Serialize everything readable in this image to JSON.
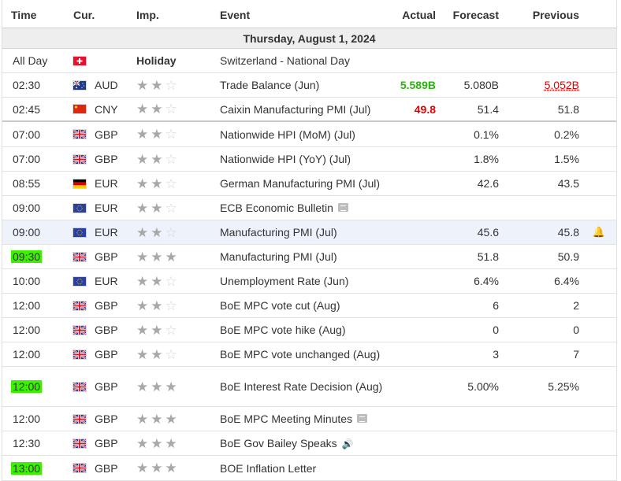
{
  "header": {
    "time": "Time",
    "currency": "Cur.",
    "importance": "Imp.",
    "event": "Event",
    "actual": "Actual",
    "forecast": "Forecast",
    "previous": "Previous"
  },
  "day_label": "Thursday, August 1, 2024",
  "colors": {
    "highlight": "#3cf000",
    "actual_positive": "#2cb012",
    "actual_negative": "#e00000",
    "selected_row": "#eef3fb"
  },
  "rows": [
    {
      "time": "All Day",
      "flag": "CH",
      "currency": "",
      "imp_label": "Holiday",
      "stars": null,
      "event": "Switzerland - National Day",
      "actual": "",
      "forecast": "",
      "previous": ""
    },
    {
      "time": "02:30",
      "flag": "AU",
      "currency": "AUD",
      "stars": 2,
      "event": "Trade Balance (Jun)",
      "actual": "5.589B",
      "actual_color": "positive",
      "forecast": "5.080B",
      "previous": "5.052B",
      "previous_revised": true
    },
    {
      "time": "02:45",
      "flag": "CN",
      "currency": "CNY",
      "stars": 2,
      "event": "Caixin Manufacturing PMI (Jul)",
      "actual": "49.8",
      "actual_color": "negative",
      "forecast": "51.4",
      "previous": "51.8"
    },
    {
      "time": "07:00",
      "flag": "GB",
      "currency": "GBP",
      "stars": 2,
      "event": "Nationwide HPI (MoM) (Jul)",
      "actual": "",
      "forecast": "0.1%",
      "previous": "0.2%"
    },
    {
      "time": "07:00",
      "flag": "GB",
      "currency": "GBP",
      "stars": 2,
      "event": "Nationwide HPI (YoY) (Jul)",
      "actual": "",
      "forecast": "1.8%",
      "previous": "1.5%"
    },
    {
      "time": "08:55",
      "flag": "DE",
      "currency": "EUR",
      "stars": 2,
      "event": "German Manufacturing PMI (Jul)",
      "actual": "",
      "forecast": "42.6",
      "previous": "43.5"
    },
    {
      "time": "09:00",
      "flag": "EU",
      "currency": "EUR",
      "stars": 2,
      "event": "ECB Economic Bulletin",
      "icon": "document-icon",
      "actual": "",
      "forecast": "",
      "previous": ""
    },
    {
      "time": "09:00",
      "flag": "EU",
      "currency": "EUR",
      "stars": 2,
      "event": "Manufacturing PMI (Jul)",
      "actual": "",
      "forecast": "45.6",
      "previous": "45.8",
      "selected": true,
      "bell": true
    },
    {
      "time": "09:30",
      "flag": "GB",
      "currency": "GBP",
      "stars": 3,
      "event": "Manufacturing PMI (Jul)",
      "actual": "",
      "forecast": "51.8",
      "previous": "50.9",
      "highlight": true
    },
    {
      "time": "10:00",
      "flag": "EU",
      "currency": "EUR",
      "stars": 2,
      "event": "Unemployment Rate (Jun)",
      "actual": "",
      "forecast": "6.4%",
      "previous": "6.4%"
    },
    {
      "time": "12:00",
      "flag": "GB",
      "currency": "GBP",
      "stars": 2,
      "event": "BoE MPC vote cut (Aug)",
      "actual": "",
      "forecast": "6",
      "previous": "2"
    },
    {
      "time": "12:00",
      "flag": "GB",
      "currency": "GBP",
      "stars": 2,
      "event": "BoE MPC vote hike (Aug)",
      "actual": "",
      "forecast": "0",
      "previous": "0"
    },
    {
      "time": "12:00",
      "flag": "GB",
      "currency": "GBP",
      "stars": 2,
      "event": "BoE MPC vote unchanged (Aug)",
      "actual": "",
      "forecast": "3",
      "previous": "7"
    },
    {
      "time": "12:00",
      "flag": "GB",
      "currency": "GBP",
      "stars": 3,
      "event": "BoE Interest Rate Decision (Aug)",
      "actual": "",
      "forecast": "5.00%",
      "previous": "5.25%",
      "highlight": true,
      "tall": true
    },
    {
      "time": "12:00",
      "flag": "GB",
      "currency": "GBP",
      "stars": 3,
      "event": "BoE MPC Meeting Minutes",
      "icon": "document-icon",
      "actual": "",
      "forecast": "",
      "previous": ""
    },
    {
      "time": "12:30",
      "flag": "GB",
      "currency": "GBP",
      "stars": 3,
      "event": "BoE Gov Bailey Speaks",
      "icon": "speaker-icon",
      "actual": "",
      "forecast": "",
      "previous": ""
    },
    {
      "time": "13:00",
      "flag": "GB",
      "currency": "GBP",
      "stars": 3,
      "event": "BOE Inflation Letter",
      "actual": "",
      "forecast": "",
      "previous": "",
      "highlight": true
    }
  ]
}
